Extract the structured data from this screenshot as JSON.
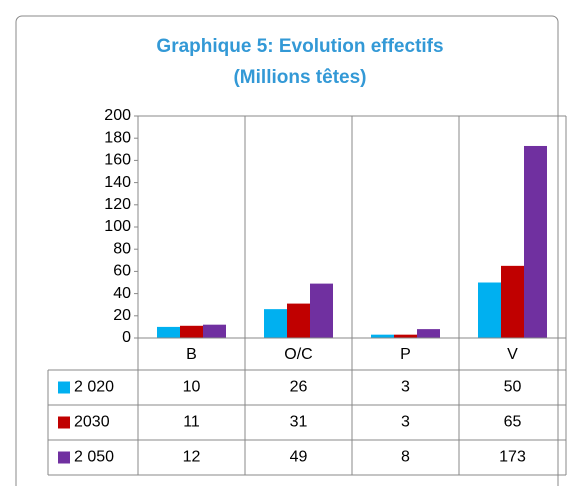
{
  "chart_data": {
    "type": "bar",
    "title": "Graphique 5: Evolution effectifs",
    "subtitle": "(Millions têtes)",
    "categories": [
      "B",
      "O/C",
      "P",
      "V"
    ],
    "series": [
      {
        "name": "2 020",
        "color": "#00b0f0",
        "values": [
          10,
          26,
          3,
          50
        ]
      },
      {
        "name": "2030",
        "color": "#c00000",
        "values": [
          11,
          31,
          3,
          65
        ]
      },
      {
        "name": "2 050",
        "color": "#7030a0",
        "values": [
          12,
          49,
          8,
          173
        ]
      }
    ],
    "ylim": [
      0,
      200
    ],
    "yticks": [
      0,
      20,
      40,
      60,
      80,
      100,
      120,
      140,
      160,
      180,
      200
    ]
  }
}
